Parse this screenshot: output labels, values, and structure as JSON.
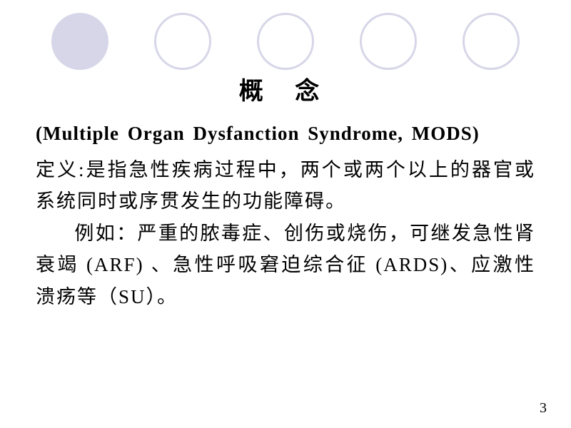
{
  "decoration": {
    "circle_fill_color": "#d6d6e8",
    "circle_outline_color": "#d6d6e8",
    "circles": [
      {
        "type": "filled"
      },
      {
        "type": "outline"
      },
      {
        "type": "outline"
      },
      {
        "type": "outline"
      },
      {
        "type": "outline"
      }
    ]
  },
  "slide": {
    "title": "概  念",
    "subtitle": "(Multiple Organ Dysfanction Syndrome, MODS)",
    "definition": "定义:是指急性疾病过程中，两个或两个以上的器官或系统同时或序贯发生的功能障碍。",
    "example": "例如：严重的脓毒症、创伤或烧伤，可继发急性肾衰竭 (ARF) 、急性呼吸窘迫综合征 (ARDS)、应激性溃疡等（SU）。",
    "page_number": "3"
  },
  "typography": {
    "title_fontsize": 34,
    "subtitle_fontsize": 27,
    "body_fontsize": 27,
    "text_color": "#000000",
    "background_color": "#ffffff"
  }
}
